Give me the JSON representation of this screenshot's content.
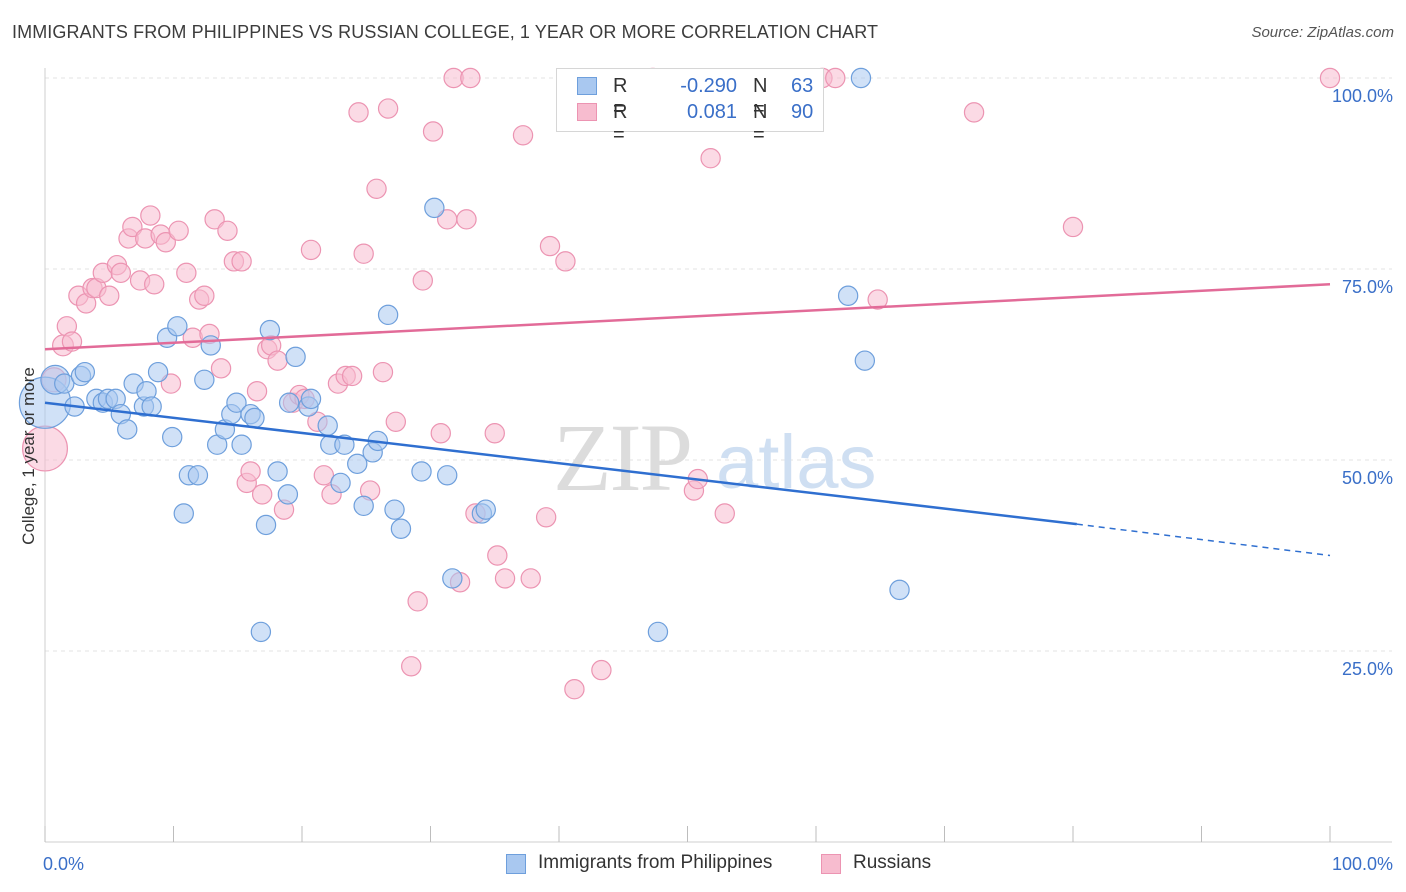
{
  "header": {
    "title": "IMMIGRANTS FROM PHILIPPINES VS RUSSIAN COLLEGE, 1 YEAR OR MORE CORRELATION CHART",
    "source": "Source: ZipAtlas.com"
  },
  "watermark": {
    "zip": "ZIP",
    "atlas": "atlas"
  },
  "legend": {
    "r_label": "R =",
    "n_label": "N =",
    "rows": [
      {
        "r": "-0.290",
        "n": "63",
        "color": "#6fa0e0"
      },
      {
        "r": "0.081",
        "n": "90",
        "color": "#f08fb0"
      }
    ]
  },
  "bottom_legend": [
    "Immigrants from Philippines",
    "Russians"
  ],
  "colors": {
    "blue_fill": "#a9c8f0",
    "blue_stroke": "#6e9fdc",
    "blue_line": "#2f6fd0",
    "pink_fill": "#f7bccf",
    "pink_stroke": "#ec94b2",
    "pink_line": "#e26b98",
    "tick_label": "#3a6fc8",
    "grid": "#e3e3e3"
  },
  "chart_data": {
    "type": "scatter",
    "title": "IMMIGRANTS FROM PHILIPPINES VS RUSSIAN COLLEGE, 1 YEAR OR MORE CORRELATION CHART",
    "xlabel": "",
    "ylabel": "College, 1 year or more",
    "xlim": [
      0,
      100
    ],
    "ylim": [
      0,
      100
    ],
    "x_tick_labels": [
      "0.0%",
      "100.0%"
    ],
    "y_ticks": [
      25,
      50,
      75,
      100
    ],
    "y_tick_labels": [
      "25.0%",
      "50.0%",
      "75.0%",
      "100.0%"
    ],
    "grid": true,
    "legend_placement": "top-center",
    "series": [
      {
        "name": "Immigrants from Philippines",
        "r": -0.29,
        "n": 63,
        "trend": {
          "x0": 0,
          "y0": 57.5,
          "x1": 80.3,
          "y1": 41.6,
          "dash_to_x": 100,
          "dash_to_y": 37.5
        },
        "points": [
          [
            0,
            57.5,
            3.2
          ],
          [
            0.8,
            60.5,
            1.8
          ],
          [
            1.5,
            60,
            1.2
          ],
          [
            2.3,
            57,
            1.2
          ],
          [
            2.8,
            61,
            1.2
          ],
          [
            3.1,
            61.5,
            1.2
          ],
          [
            4,
            58,
            1.2
          ],
          [
            4.5,
            57.5,
            1.2
          ],
          [
            4.9,
            58,
            1.2
          ],
          [
            5.5,
            58,
            1.2
          ],
          [
            5.9,
            56,
            1.2
          ],
          [
            6.4,
            54,
            1.2
          ],
          [
            6.9,
            60,
            1.2
          ],
          [
            7.7,
            57,
            1.2
          ],
          [
            7.9,
            59,
            1.2
          ],
          [
            8.3,
            57,
            1.2
          ],
          [
            8.8,
            61.5,
            1.2
          ],
          [
            9.5,
            66,
            1.2
          ],
          [
            9.9,
            53,
            1.2
          ],
          [
            10.3,
            67.5,
            1.2
          ],
          [
            10.8,
            43,
            1.2
          ],
          [
            11.2,
            48,
            1.2
          ],
          [
            11.9,
            48,
            1.2
          ],
          [
            12.4,
            60.5,
            1.2
          ],
          [
            12.9,
            65,
            1.2
          ],
          [
            13.4,
            52,
            1.2
          ],
          [
            14,
            54,
            1.2
          ],
          [
            14.5,
            56,
            1.2
          ],
          [
            14.9,
            57.5,
            1.2
          ],
          [
            15.3,
            52,
            1.2
          ],
          [
            16,
            56,
            1.2
          ],
          [
            16.3,
            55.5,
            1.2
          ],
          [
            16.8,
            27.5,
            1.2
          ],
          [
            17.2,
            41.5,
            1.2
          ],
          [
            17.5,
            67,
            1.2
          ],
          [
            18.1,
            48.5,
            1.2
          ],
          [
            18.9,
            45.5,
            1.2
          ],
          [
            19,
            57.5,
            1.2
          ],
          [
            19.5,
            63.5,
            1.2
          ],
          [
            20.5,
            57,
            1.2
          ],
          [
            20.7,
            58,
            1.2
          ],
          [
            22,
            54.5,
            1.2
          ],
          [
            22.2,
            52,
            1.2
          ],
          [
            23,
            47,
            1.2
          ],
          [
            23.3,
            52,
            1.2
          ],
          [
            24.3,
            49.5,
            1.2
          ],
          [
            24.8,
            44,
            1.2
          ],
          [
            25.5,
            51,
            1.2
          ],
          [
            25.9,
            52.5,
            1.2
          ],
          [
            26.7,
            69,
            1.2
          ],
          [
            27.2,
            43.5,
            1.2
          ],
          [
            27.7,
            41,
            1.2
          ],
          [
            29.3,
            48.5,
            1.2
          ],
          [
            30.3,
            83,
            1.2
          ],
          [
            31.3,
            48,
            1.2
          ],
          [
            31.7,
            34.5,
            1.2
          ],
          [
            34,
            43,
            1.2
          ],
          [
            34.3,
            43.5,
            1.2
          ],
          [
            47.7,
            27.5,
            1.2
          ],
          [
            62.5,
            71.5,
            1.2
          ],
          [
            63.5,
            100,
            1.2
          ],
          [
            63.8,
            63,
            1.2
          ],
          [
            66.5,
            33,
            1.2
          ]
        ]
      },
      {
        "name": "Russians",
        "r": 0.081,
        "n": 90,
        "trend": {
          "x0": 0,
          "y0": 64.5,
          "x1": 100,
          "y1": 73
        },
        "points": [
          [
            0,
            51.5,
            2.8
          ],
          [
            0.7,
            60.5,
            1.5
          ],
          [
            1.4,
            65,
            1.3
          ],
          [
            1.7,
            67.5,
            1.2
          ],
          [
            2.1,
            65.5,
            1.2
          ],
          [
            2.6,
            71.5,
            1.2
          ],
          [
            3.2,
            70.5,
            1.2
          ],
          [
            3.7,
            72.5,
            1.2
          ],
          [
            4,
            72.5,
            1.2
          ],
          [
            4.5,
            74.5,
            1.2
          ],
          [
            5,
            71.5,
            1.2
          ],
          [
            5.6,
            75.5,
            1.2
          ],
          [
            5.9,
            74.5,
            1.2
          ],
          [
            6.5,
            79,
            1.2
          ],
          [
            6.8,
            80.5,
            1.2
          ],
          [
            7.4,
            73.5,
            1.2
          ],
          [
            7.8,
            79,
            1.2
          ],
          [
            8.2,
            82,
            1.2
          ],
          [
            8.5,
            73,
            1.2
          ],
          [
            9,
            79.5,
            1.2
          ],
          [
            9.4,
            78.5,
            1.2
          ],
          [
            9.8,
            60,
            1.2
          ],
          [
            10.4,
            80,
            1.2
          ],
          [
            11,
            74.5,
            1.2
          ],
          [
            11.5,
            66,
            1.2
          ],
          [
            12,
            71,
            1.2
          ],
          [
            12.4,
            71.5,
            1.2
          ],
          [
            12.8,
            66.5,
            1.2
          ],
          [
            13.2,
            81.5,
            1.2
          ],
          [
            13.7,
            62,
            1.2
          ],
          [
            14.2,
            80,
            1.2
          ],
          [
            14.7,
            76,
            1.2
          ],
          [
            15.3,
            76,
            1.2
          ],
          [
            15.7,
            47,
            1.2
          ],
          [
            16,
            48.5,
            1.2
          ],
          [
            16.5,
            59,
            1.2
          ],
          [
            16.9,
            45.5,
            1.2
          ],
          [
            17.3,
            64.5,
            1.2
          ],
          [
            17.6,
            65,
            1.2
          ],
          [
            18.1,
            63,
            1.2
          ],
          [
            18.6,
            43.5,
            1.2
          ],
          [
            19.3,
            57.5,
            1.2
          ],
          [
            19.8,
            58.5,
            1.2
          ],
          [
            20.2,
            58,
            1.2
          ],
          [
            20.7,
            77.5,
            1.2
          ],
          [
            21.2,
            55,
            1.2
          ],
          [
            21.7,
            48,
            1.2
          ],
          [
            22.3,
            45.5,
            1.2
          ],
          [
            22.8,
            60,
            1.2
          ],
          [
            23.4,
            61,
            1.2
          ],
          [
            23.9,
            61,
            1.2
          ],
          [
            24.4,
            95.5,
            1.2
          ],
          [
            24.8,
            77,
            1.2
          ],
          [
            25.3,
            46,
            1.2
          ],
          [
            25.8,
            85.5,
            1.2
          ],
          [
            26.3,
            61.5,
            1.2
          ],
          [
            26.7,
            96,
            1.2
          ],
          [
            27.3,
            55,
            1.2
          ],
          [
            28.5,
            23,
            1.2
          ],
          [
            29,
            31.5,
            1.2
          ],
          [
            29.4,
            73.5,
            1.2
          ],
          [
            30.2,
            93,
            1.2
          ],
          [
            30.8,
            53.5,
            1.2
          ],
          [
            31.3,
            81.5,
            1.2
          ],
          [
            31.8,
            100,
            1.2
          ],
          [
            32.3,
            34,
            1.2
          ],
          [
            32.8,
            81.5,
            1.2
          ],
          [
            33.1,
            100,
            1.2
          ],
          [
            33.5,
            43,
            1.2
          ],
          [
            35,
            53.5,
            1.2
          ],
          [
            35.2,
            37.5,
            1.2
          ],
          [
            35.8,
            34.5,
            1.2
          ],
          [
            37.2,
            92.5,
            1.2
          ],
          [
            37.8,
            34.5,
            1.2
          ],
          [
            39,
            42.5,
            1.2
          ],
          [
            39.3,
            78,
            1.2
          ],
          [
            40.5,
            76,
            1.2
          ],
          [
            41.2,
            20,
            1.2
          ],
          [
            43.3,
            22.5,
            1.2
          ],
          [
            47.3,
            100,
            1.2
          ],
          [
            50.5,
            46,
            1.2
          ],
          [
            50.8,
            47.5,
            1.2
          ],
          [
            51.8,
            89.5,
            1.2
          ],
          [
            52.9,
            43,
            1.2
          ],
          [
            60.5,
            100,
            1.2
          ],
          [
            61.5,
            100,
            1.2
          ],
          [
            64.8,
            71,
            1.2
          ],
          [
            72.3,
            95.5,
            1.2
          ],
          [
            80,
            80.5,
            1.2
          ],
          [
            100,
            100,
            1.2
          ]
        ]
      }
    ]
  }
}
